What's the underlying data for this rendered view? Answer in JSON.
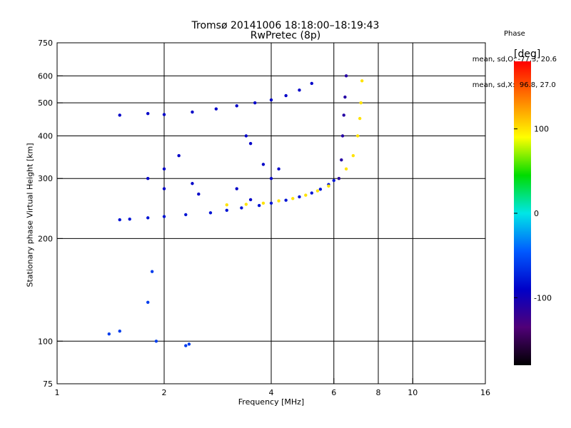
{
  "header": {
    "title_line1": "Tromsø 20141006 18:18:00–18:19:43",
    "title_line2": "RwPretec (8p)"
  },
  "stats": {
    "heading": "Phase",
    "o_line": "mean, sd,O: -77.3, 20.6",
    "x_line": "mean, sd,X:  96.8, 27.0"
  },
  "colorbar": {
    "unit": "[deg]",
    "ticks": [
      {
        "value": 100,
        "label": "100"
      },
      {
        "value": 0,
        "label": "0"
      },
      {
        "value": -100,
        "label": "-100"
      }
    ],
    "range": [
      -180,
      180
    ]
  },
  "chart_data": {
    "type": "scatter",
    "title": "Tromsø 20141006 18:18:00–18:19:43\nRwPretec (8p)",
    "xlabel": "Frequency [MHz]",
    "ylabel": "Stationary phase Virtual Height [km]",
    "xscale": "log",
    "yscale": "log",
    "xlim": [
      1,
      16
    ],
    "ylim": [
      75,
      750
    ],
    "xticks": [
      1,
      2,
      4,
      6,
      8,
      10,
      16
    ],
    "yticks": [
      75,
      100,
      200,
      300,
      400,
      500,
      600,
      750
    ],
    "x_gridlines": [
      2,
      4,
      6,
      8,
      10
    ],
    "y_gridlines": [
      100,
      200,
      300,
      400,
      500,
      600
    ],
    "grid": true,
    "series": [
      {
        "kind": "O-mode lower trace (phase ≈ -80°)",
        "points": [
          [
            1.5,
            227
          ],
          [
            1.6,
            228
          ],
          [
            1.8,
            230
          ],
          [
            2.0,
            232
          ],
          [
            2.3,
            235
          ],
          [
            2.7,
            238
          ],
          [
            3.0,
            242
          ],
          [
            3.3,
            246
          ],
          [
            3.7,
            250
          ],
          [
            4.0,
            254
          ],
          [
            4.4,
            259
          ],
          [
            4.8,
            265
          ],
          [
            5.2,
            272
          ],
          [
            5.5,
            279
          ],
          [
            5.8,
            288
          ],
          [
            6.0,
            296
          ]
        ]
      },
      {
        "kind": "X-mode lower trace (phase ≈ 100°)",
        "points": [
          [
            3.0,
            251
          ],
          [
            3.4,
            252
          ],
          [
            3.8,
            254
          ],
          [
            4.2,
            258
          ],
          [
            4.6,
            262
          ],
          [
            5.0,
            268
          ],
          [
            5.4,
            276
          ],
          [
            5.8,
            285
          ],
          [
            6.2,
            300
          ],
          [
            6.5,
            320
          ],
          [
            6.8,
            350
          ],
          [
            7.0,
            400
          ],
          [
            7.1,
            450
          ],
          [
            7.15,
            500
          ],
          [
            7.2,
            580
          ]
        ]
      },
      {
        "kind": "O-mode high trace (phase ≈ -90°)",
        "points": [
          [
            1.5,
            460
          ],
          [
            1.8,
            465
          ],
          [
            2.0,
            462
          ],
          [
            2.4,
            470
          ],
          [
            2.8,
            480
          ],
          [
            3.2,
            490
          ],
          [
            3.6,
            500
          ],
          [
            4.0,
            510
          ],
          [
            4.4,
            525
          ],
          [
            4.8,
            545
          ],
          [
            5.2,
            570
          ]
        ]
      },
      {
        "kind": "O-mode cusp (phase ≈ -110°)",
        "points": [
          [
            6.2,
            300
          ],
          [
            6.3,
            340
          ],
          [
            6.35,
            400
          ],
          [
            6.4,
            460
          ],
          [
            6.45,
            520
          ],
          [
            6.5,
            600
          ]
        ]
      },
      {
        "kind": "spread clutter (phase ≈ -90°)",
        "points": [
          [
            1.8,
            300
          ],
          [
            2.0,
            280
          ],
          [
            2.0,
            320
          ],
          [
            2.4,
            290
          ],
          [
            2.5,
            270
          ],
          [
            3.2,
            280
          ],
          [
            3.5,
            260
          ],
          [
            3.8,
            330
          ],
          [
            4.0,
            300
          ],
          [
            2.2,
            350
          ],
          [
            3.4,
            400
          ],
          [
            3.5,
            380
          ],
          [
            4.2,
            320
          ]
        ]
      },
      {
        "kind": "E-region echoes",
        "points": [
          [
            1.4,
            105
          ],
          [
            1.5,
            107
          ],
          [
            1.8,
            130
          ],
          [
            1.85,
            160
          ],
          [
            1.9,
            100
          ],
          [
            2.3,
            97
          ],
          [
            2.35,
            98
          ]
        ]
      }
    ]
  }
}
